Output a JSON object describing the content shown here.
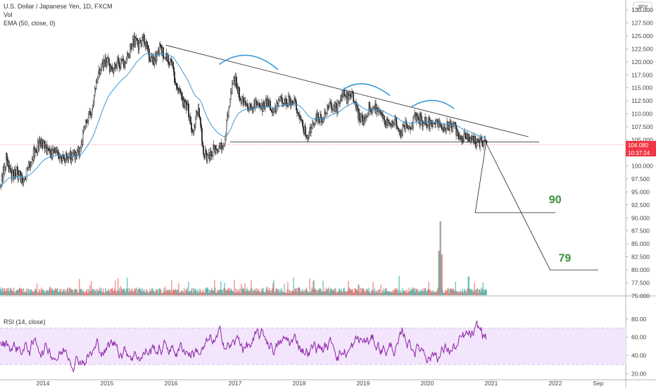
{
  "header": {
    "symbol_line": "U.S. Dollar / Japanese Yen, 1D, FXCM",
    "vol_label": "Vol",
    "ema_label": "EMA (50, close, 0)",
    "rsi_label": "RSI (14, close)",
    "currency": "JPY"
  },
  "price_badge": {
    "price": "104.080",
    "countdown": "10:37:24",
    "color": "#f23645"
  },
  "colors": {
    "ema": "#3a9ad9",
    "rsi": "#8e24aa",
    "rsi_band": "#f3e5fb",
    "up": "#26a69a",
    "down": "#ef5350",
    "target": "#3a8f3a",
    "arcs": "#3a9ad9"
  },
  "chart_data": [
    {
      "type": "candlestick",
      "ylim": [
        75,
        130
      ],
      "y_ticks": [
        "130.000",
        "127.500",
        "125.000",
        "122.500",
        "120.000",
        "117.500",
        "115.000",
        "112.500",
        "110.000",
        "107.500",
        "105.000",
        "102.500",
        "100.000",
        "97.500",
        "95.000",
        "92.500",
        "90.000",
        "87.500",
        "85.000",
        "82.500",
        "80.000",
        "77.500",
        "75.000"
      ],
      "x_ticks": [
        {
          "label": "2014",
          "x": 2014.0
        },
        {
          "label": "2015",
          "x": 2015.0
        },
        {
          "label": "2016",
          "x": 2016.0
        },
        {
          "label": "2017",
          "x": 2017.0
        },
        {
          "label": "2018",
          "x": 2018.0
        },
        {
          "label": "2019",
          "x": 2019.0
        },
        {
          "label": "2020",
          "x": 2020.0
        },
        {
          "label": "2021",
          "x": 2021.0
        },
        {
          "label": "2022",
          "x": 2022.0
        },
        {
          "label": "Sep",
          "x": 2022.67
        }
      ],
      "close_path": [
        [
          2013.33,
          96
        ],
        [
          2013.42,
          101.5
        ],
        [
          2013.5,
          98
        ],
        [
          2013.58,
          99
        ],
        [
          2013.67,
          97
        ],
        [
          2013.75,
          99
        ],
        [
          2013.83,
          102
        ],
        [
          2013.92,
          104
        ],
        [
          2014.0,
          104.5
        ],
        [
          2014.08,
          102
        ],
        [
          2014.17,
          102.5
        ],
        [
          2014.25,
          102
        ],
        [
          2014.33,
          101.5
        ],
        [
          2014.42,
          101.8
        ],
        [
          2014.5,
          101.7
        ],
        [
          2014.58,
          103
        ],
        [
          2014.67,
          109
        ],
        [
          2014.75,
          110
        ],
        [
          2014.83,
          116
        ],
        [
          2014.92,
          119.5
        ],
        [
          2015.0,
          120
        ],
        [
          2015.08,
          118
        ],
        [
          2015.17,
          120
        ],
        [
          2015.25,
          119.5
        ],
        [
          2015.33,
          121.5
        ],
        [
          2015.42,
          124
        ],
        [
          2015.5,
          123
        ],
        [
          2015.58,
          124.5
        ],
        [
          2015.67,
          120
        ],
        [
          2015.75,
          120.5
        ],
        [
          2015.83,
          123
        ],
        [
          2015.92,
          120.5
        ],
        [
          2016.0,
          120.5
        ],
        [
          2016.08,
          115
        ],
        [
          2016.17,
          112.5
        ],
        [
          2016.25,
          111.5
        ],
        [
          2016.33,
          106.5
        ],
        [
          2016.42,
          111
        ],
        [
          2016.5,
          102.5
        ],
        [
          2016.58,
          101.5
        ],
        [
          2016.67,
          103.5
        ],
        [
          2016.75,
          103.5
        ],
        [
          2016.83,
          104.5
        ],
        [
          2016.92,
          114
        ],
        [
          2017.0,
          116.5
        ],
        [
          2017.08,
          112.5
        ],
        [
          2017.17,
          112.5
        ],
        [
          2017.25,
          110.5
        ],
        [
          2017.33,
          112
        ],
        [
          2017.42,
          111
        ],
        [
          2017.5,
          112.5
        ],
        [
          2017.58,
          110
        ],
        [
          2017.67,
          112.5
        ],
        [
          2017.75,
          112.5
        ],
        [
          2017.83,
          112.5
        ],
        [
          2017.92,
          112.7
        ],
        [
          2018.0,
          109
        ],
        [
          2018.08,
          106.5
        ],
        [
          2018.17,
          106.3
        ],
        [
          2018.25,
          109.3
        ],
        [
          2018.33,
          108.8
        ],
        [
          2018.42,
          110.5
        ],
        [
          2018.5,
          111.8
        ],
        [
          2018.58,
          111
        ],
        [
          2018.67,
          113.7
        ],
        [
          2018.75,
          113
        ],
        [
          2018.83,
          113.5
        ],
        [
          2018.92,
          109.5
        ],
        [
          2019.0,
          108.9
        ],
        [
          2019.08,
          111.3
        ],
        [
          2019.17,
          110.9
        ],
        [
          2019.25,
          111.2
        ],
        [
          2019.33,
          108.3
        ],
        [
          2019.42,
          107.8
        ],
        [
          2019.5,
          108.8
        ],
        [
          2019.58,
          106.3
        ],
        [
          2019.67,
          108.1
        ],
        [
          2019.75,
          108.1
        ],
        [
          2019.83,
          109.5
        ],
        [
          2019.92,
          108.6
        ],
        [
          2020.0,
          108.4
        ],
        [
          2020.08,
          107.9
        ],
        [
          2020.17,
          108
        ],
        [
          2020.25,
          107.6
        ],
        [
          2020.33,
          107.8
        ],
        [
          2020.42,
          107.5
        ],
        [
          2020.5,
          105.8
        ],
        [
          2020.58,
          105.9
        ],
        [
          2020.67,
          105.5
        ],
        [
          2020.75,
          104.7
        ],
        [
          2020.83,
          104.5
        ],
        [
          2020.92,
          104.1
        ]
      ],
      "last_close": 104.08,
      "annotations": {
        "trendline_from": [
          2015.92,
          123.2
        ],
        "trendline_to": [
          2021.58,
          105.6
        ],
        "support_from": [
          2016.92,
          104.6
        ],
        "support_to": [
          2021.75,
          104.6
        ],
        "projection": [
          [
            2020.92,
            104.4
          ],
          [
            2020.75,
            91.0
          ],
          [
            2022.0,
            91.0
          ]
        ],
        "projection2": [
          [
            2020.92,
            104.4
          ],
          [
            2021.92,
            80.0
          ],
          [
            2022.67,
            80.0
          ]
        ],
        "arcs": [
          [
            2016.75,
            119.5,
            2017.67,
            118.5,
            2017.2,
            123.5
          ],
          [
            2018.67,
            114.5,
            2019.42,
            113.5,
            2019.0,
            117.5
          ],
          [
            2019.75,
            111.3,
            2020.42,
            111.0,
            2020.1,
            114.0
          ]
        ],
        "target_labels": [
          {
            "text": "90",
            "x": 2021.9,
            "y": 92.8
          },
          {
            "text": "79",
            "x": 2022.05,
            "y": 81.6
          }
        ]
      }
    },
    {
      "type": "bar",
      "name": "volume",
      "spikes": [
        [
          2020.2,
          1.0
        ],
        [
          2020.18,
          0.6
        ],
        [
          2020.22,
          0.55
        ]
      ]
    },
    {
      "type": "line",
      "name": "rsi",
      "ylim": [
        14,
        90
      ],
      "y_ticks": [
        "80.00",
        "60.00",
        "40.00",
        "20.00"
      ],
      "bands": [
        30,
        70
      ]
    }
  ]
}
